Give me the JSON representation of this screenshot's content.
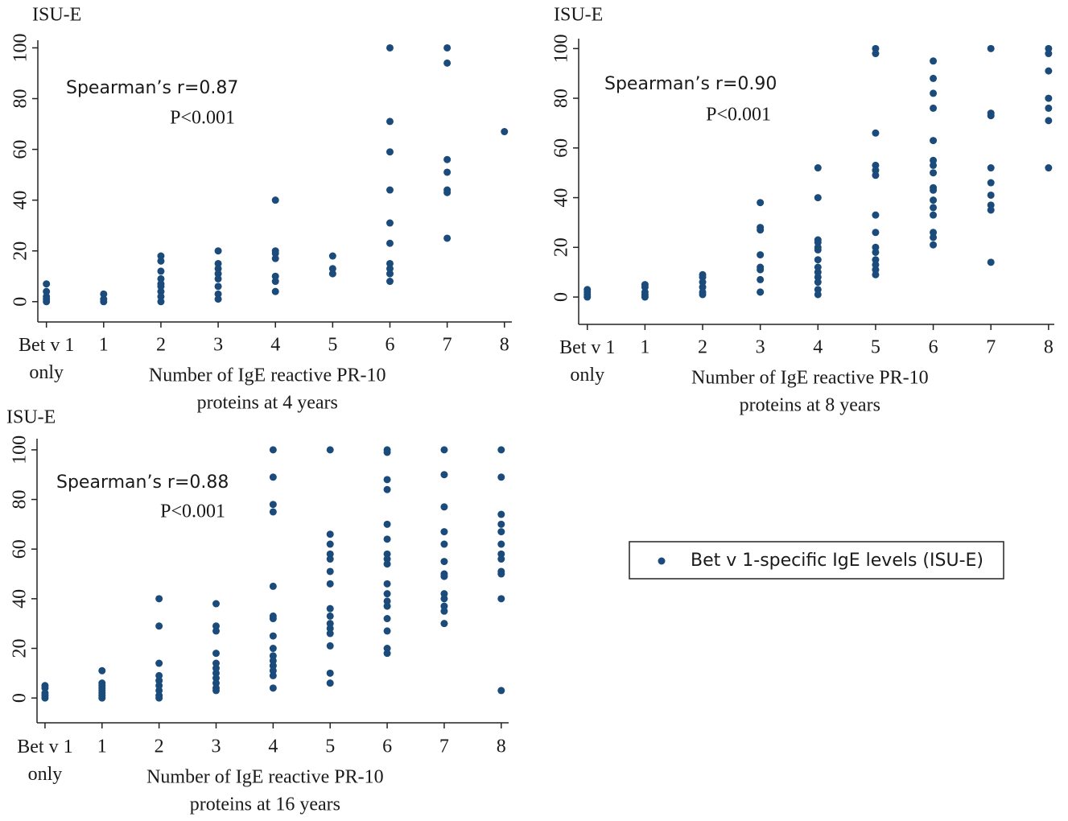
{
  "chart_data": [
    {
      "type": "scatter",
      "y_label": "ISU-E",
      "x_label": [
        "Number of IgE reactive PR-10",
        "proteins at 4 years"
      ],
      "annotations": [
        "Spearman’s r=0.87",
        "P<0.001"
      ],
      "color": "#1b4b7a",
      "x": [
        0,
        0,
        0,
        0,
        0,
        1,
        1,
        1,
        2,
        2,
        2,
        2,
        2,
        2,
        2,
        2,
        2,
        3,
        3,
        3,
        3,
        3,
        3,
        3,
        3,
        4,
        4,
        4,
        4,
        4,
        4,
        4,
        5,
        5,
        5,
        6,
        6,
        6,
        6,
        6,
        6,
        6,
        6,
        6,
        6,
        7,
        7,
        7,
        7,
        7,
        7,
        7,
        8
      ],
      "y": [
        7,
        4,
        2,
        1,
        0,
        3,
        1,
        0,
        18,
        16,
        12,
        9,
        7,
        6,
        4,
        2,
        0,
        20,
        15,
        13,
        11,
        9,
        6,
        3,
        1,
        40,
        20,
        19,
        17,
        10,
        8,
        4,
        18,
        13,
        11,
        100,
        71,
        59,
        44,
        31,
        23,
        15,
        13,
        11,
        8,
        100,
        94,
        56,
        51,
        44,
        43,
        25,
        67
      ],
      "xlim": [
        -0.15,
        8.13
      ],
      "ylim": [
        -8,
        103
      ],
      "xticks": [
        {
          "value": 0,
          "label": "Bet v 1 only"
        },
        1,
        2,
        3,
        4,
        5,
        6,
        7,
        8
      ],
      "yticks": [
        0,
        20,
        40,
        60,
        80,
        100
      ]
    },
    {
      "type": "scatter",
      "y_label": "ISU-E",
      "x_label": [
        "Number of IgE reactive PR-10",
        "proteins  at 8 years"
      ],
      "annotations": [
        "Spearman’s r=0.90",
        "P<0.001"
      ],
      "color": "#1b4b7a",
      "x": [
        0,
        0,
        0,
        0,
        1,
        1,
        1,
        1,
        1,
        2,
        2,
        2,
        2,
        2,
        2,
        3,
        3,
        3,
        3,
        3,
        3,
        3,
        3,
        3,
        4,
        4,
        4,
        4,
        4,
        4,
        4,
        4,
        4,
        4,
        4,
        4,
        4,
        5,
        5,
        5,
        5,
        5,
        5,
        5,
        5,
        5,
        5,
        5,
        5,
        5,
        5,
        6,
        6,
        6,
        6,
        6,
        6,
        6,
        6,
        6,
        6,
        6,
        6,
        6,
        6,
        6,
        6,
        7,
        7,
        7,
        7,
        7,
        7,
        7,
        7,
        7,
        8,
        8,
        8,
        8,
        8,
        8,
        8
      ],
      "y": [
        3,
        2,
        1,
        0,
        5,
        4,
        2,
        1,
        0,
        9,
        8,
        6,
        4,
        2,
        1,
        38,
        28,
        27,
        17,
        12,
        11,
        7,
        2,
        2,
        52,
        40,
        23,
        22,
        20,
        19,
        15,
        12,
        10,
        8,
        6,
        3,
        1,
        100,
        98,
        66,
        53,
        51,
        49,
        33,
        26,
        20,
        18,
        15,
        13,
        11,
        9,
        95,
        88,
        82,
        76,
        63,
        55,
        53,
        50,
        44,
        43,
        39,
        36,
        33,
        26,
        24,
        21,
        100,
        74,
        73,
        52,
        46,
        41,
        37,
        35,
        14,
        100,
        98,
        91,
        80,
        76,
        71,
        52
      ],
      "xlim": [
        -0.15,
        8.1
      ],
      "ylim": [
        -11,
        104
      ],
      "xticks": [
        {
          "value": 0,
          "label": "Bet v 1 only"
        },
        1,
        2,
        3,
        4,
        5,
        6,
        7,
        8
      ],
      "yticks": [
        0,
        20,
        40,
        60,
        80,
        100
      ]
    },
    {
      "type": "scatter",
      "y_label": "ISU-E",
      "x_label": [
        "Number of IgE reactive  PR-10",
        "proteins at 16 years"
      ],
      "annotations": [
        "Spearman’s r=0.88",
        "P<0.001"
      ],
      "color": "#1b4b7a",
      "x": [
        0,
        0,
        0,
        0,
        0,
        1,
        1,
        1,
        1,
        1,
        1,
        1,
        1,
        2,
        2,
        2,
        2,
        2,
        2,
        2,
        2,
        2,
        3,
        3,
        3,
        3,
        3,
        3,
        3,
        3,
        3,
        3,
        3,
        4,
        4,
        4,
        4,
        4,
        4,
        4,
        4,
        4,
        4,
        4,
        4,
        4,
        4,
        4,
        5,
        5,
        5,
        5,
        5,
        5,
        5,
        5,
        5,
        5,
        5,
        5,
        5,
        5,
        5,
        6,
        6,
        6,
        6,
        6,
        6,
        6,
        6,
        6,
        6,
        6,
        6,
        6,
        6,
        6,
        6,
        6,
        7,
        7,
        7,
        7,
        7,
        7,
        7,
        7,
        7,
        7,
        7,
        7,
        7,
        8,
        8,
        8,
        8,
        8,
        8,
        8,
        8,
        8,
        8,
        8,
        8
      ],
      "y": [
        5,
        4,
        2,
        1,
        0,
        11,
        6,
        5,
        4,
        3,
        2,
        1,
        0,
        40,
        29,
        14,
        9,
        7,
        5,
        3,
        1,
        0,
        38,
        29,
        27,
        18,
        14,
        12,
        10,
        8,
        6,
        4,
        3,
        100,
        89,
        78,
        75,
        45,
        33,
        32,
        25,
        20,
        17,
        15,
        13,
        11,
        9,
        4,
        100,
        66,
        62,
        58,
        56,
        51,
        46,
        36,
        33,
        30,
        28,
        26,
        21,
        10,
        6,
        100,
        99,
        88,
        84,
        70,
        64,
        58,
        56,
        54,
        46,
        42,
        39,
        37,
        32,
        27,
        20,
        18,
        100,
        90,
        77,
        67,
        62,
        55,
        50,
        49,
        42,
        40,
        37,
        35,
        30,
        100,
        89,
        74,
        70,
        67,
        62,
        58,
        56,
        51,
        50,
        40,
        3
      ],
      "xlim": [
        -0.14,
        8.13
      ],
      "ylim": [
        -10,
        104.5
      ],
      "xticks": [
        {
          "value": 0,
          "label": "Bet v 1 only"
        },
        1,
        2,
        3,
        4,
        5,
        6,
        7,
        8
      ],
      "yticks": [
        0,
        20,
        40,
        60,
        80,
        100
      ]
    }
  ],
  "legend": {
    "label": "Bet v 1-specific IgE levels (ISU-E)",
    "color": "#1b4b7a"
  }
}
